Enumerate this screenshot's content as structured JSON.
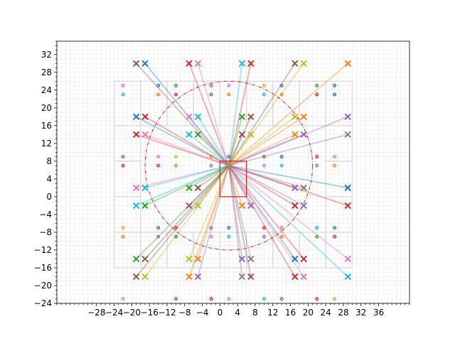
{
  "chart_data": {
    "type": "scatter",
    "title": "",
    "xlabel": "",
    "ylabel": "",
    "xlim": [
      -37,
      43
    ],
    "ylim": [
      -24,
      35
    ],
    "xticks": [
      -28,
      -24,
      -20,
      -16,
      -12,
      -8,
      -4,
      0,
      4,
      8,
      12,
      16,
      20,
      24,
      28,
      32,
      36
    ],
    "yticks": [
      -24,
      -20,
      -16,
      -12,
      -8,
      -4,
      0,
      4,
      8,
      12,
      16,
      20,
      24,
      28,
      32
    ],
    "xtick_labels": [
      "−28",
      "−24",
      "−20",
      "−16",
      "−12",
      "−8",
      "−4",
      "0",
      "4",
      "8",
      "12",
      "16",
      "20",
      "24",
      "28",
      "32",
      "36"
    ],
    "ytick_labels": [
      "−24",
      "−20",
      "−16",
      "−12",
      "−8",
      "−4",
      "0",
      "4",
      "8",
      "12",
      "16",
      "20",
      "24",
      "28",
      "32"
    ],
    "grid": "minor grid on",
    "rectangle": {
      "x": 0,
      "y": 0,
      "width": 6,
      "height": 8,
      "color": "#d62728"
    },
    "circle": {
      "center": [
        2,
        7
      ],
      "radius": 19,
      "color": "#d62728",
      "style": "dash-dot"
    },
    "hub": [
      2,
      7
    ],
    "cells": [
      {
        "x": [
          -24,
          -18
        ],
        "y": [
          16,
          26
        ]
      },
      {
        "x": [
          -18,
          -12
        ],
        "y": [
          16,
          26
        ]
      },
      {
        "x": [
          -12,
          -6
        ],
        "y": [
          16,
          26
        ]
      },
      {
        "x": [
          -6,
          0
        ],
        "y": [
          16,
          26
        ]
      },
      {
        "x": [
          0,
          6
        ],
        "y": [
          16,
          26
        ]
      },
      {
        "x": [
          6,
          12
        ],
        "y": [
          16,
          26
        ]
      },
      {
        "x": [
          12,
          18
        ],
        "y": [
          16,
          26
        ]
      },
      {
        "x": [
          18,
          24
        ],
        "y": [
          16,
          26
        ]
      },
      {
        "x": [
          24,
          30
        ],
        "y": [
          16,
          26
        ]
      },
      {
        "x": [
          -24,
          -18
        ],
        "y": [
          8,
          16
        ]
      },
      {
        "x": [
          24,
          30
        ],
        "y": [
          8,
          16
        ]
      },
      {
        "x": [
          -24,
          -18
        ],
        "y": [
          0,
          8
        ]
      },
      {
        "x": [
          24,
          30
        ],
        "y": [
          0,
          8
        ]
      },
      {
        "x": [
          -24,
          -18
        ],
        "y": [
          -8,
          0
        ]
      },
      {
        "x": [
          24,
          30
        ],
        "y": [
          -8,
          0
        ]
      },
      {
        "x": [
          -24,
          -18
        ],
        "y": [
          -16,
          -8
        ]
      },
      {
        "x": [
          -18,
          -12
        ],
        "y": [
          -16,
          -8
        ]
      },
      {
        "x": [
          -12,
          -6
        ],
        "y": [
          -16,
          -8
        ]
      },
      {
        "x": [
          -6,
          0
        ],
        "y": [
          -16,
          -8
        ]
      },
      {
        "x": [
          0,
          6
        ],
        "y": [
          -16,
          -8
        ]
      },
      {
        "x": [
          6,
          12
        ],
        "y": [
          -16,
          -8
        ]
      },
      {
        "x": [
          12,
          18
        ],
        "y": [
          -16,
          -8
        ]
      },
      {
        "x": [
          18,
          24
        ],
        "y": [
          -16,
          -8
        ]
      },
      {
        "x": [
          24,
          30
        ],
        "y": [
          -16,
          -8
        ]
      }
    ],
    "x_markers": [
      {
        "x": -19,
        "y": 30,
        "color": "#8c564b"
      },
      {
        "x": -17,
        "y": 30,
        "color": "#1f77b4"
      },
      {
        "x": -7,
        "y": 30,
        "color": "#d62728"
      },
      {
        "x": -5,
        "y": 30,
        "color": "#e377c2"
      },
      {
        "x": 5,
        "y": 30,
        "color": "#17becf"
      },
      {
        "x": 7,
        "y": 30,
        "color": "#d62728"
      },
      {
        "x": 17,
        "y": 30,
        "color": "#8c564b"
      },
      {
        "x": 19,
        "y": 30,
        "color": "#bcbd22"
      },
      {
        "x": 29,
        "y": 30,
        "color": "#ff7f0e"
      },
      {
        "x": -19,
        "y": 18,
        "color": "#1f77b4"
      },
      {
        "x": -17,
        "y": 18,
        "color": "#d62728"
      },
      {
        "x": -7,
        "y": 18,
        "color": "#e377c2"
      },
      {
        "x": -5,
        "y": 18,
        "color": "#17becf"
      },
      {
        "x": 5,
        "y": 18,
        "color": "#2ca02c"
      },
      {
        "x": 7,
        "y": 18,
        "color": "#8c564b"
      },
      {
        "x": 17,
        "y": 18,
        "color": "#bcbd22"
      },
      {
        "x": 19,
        "y": 18,
        "color": "#ff7f0e"
      },
      {
        "x": 29,
        "y": 18,
        "color": "#9467bd"
      },
      {
        "x": -19,
        "y": 14,
        "color": "#d62728"
      },
      {
        "x": -17,
        "y": 14,
        "color": "#e377c2"
      },
      {
        "x": -7,
        "y": 14,
        "color": "#17becf"
      },
      {
        "x": -5,
        "y": 14,
        "color": "#2ca02c"
      },
      {
        "x": 5,
        "y": 14,
        "color": "#8c564b"
      },
      {
        "x": 7,
        "y": 14,
        "color": "#bcbd22"
      },
      {
        "x": 17,
        "y": 14,
        "color": "#ff7f0e"
      },
      {
        "x": 19,
        "y": 14,
        "color": "#9467bd"
      },
      {
        "x": 29,
        "y": 14,
        "color": "#7f7f7f"
      },
      {
        "x": -19,
        "y": 2,
        "color": "#e377c2"
      },
      {
        "x": -17,
        "y": 2,
        "color": "#17becf"
      },
      {
        "x": -7,
        "y": 2,
        "color": "#2ca02c"
      },
      {
        "x": -5,
        "y": 2,
        "color": "#8c564b"
      },
      {
        "x": 17,
        "y": 2,
        "color": "#9467bd"
      },
      {
        "x": 19,
        "y": 2,
        "color": "#7f7f7f"
      },
      {
        "x": 29,
        "y": 2,
        "color": "#1f77b4"
      },
      {
        "x": -19,
        "y": -2,
        "color": "#17becf"
      },
      {
        "x": -17,
        "y": -2,
        "color": "#2ca02c"
      },
      {
        "x": -7,
        "y": -2,
        "color": "#8c564b"
      },
      {
        "x": -5,
        "y": -2,
        "color": "#bcbd22"
      },
      {
        "x": 5,
        "y": -2,
        "color": "#ff7f0e"
      },
      {
        "x": 7,
        "y": -2,
        "color": "#9467bd"
      },
      {
        "x": 17,
        "y": -2,
        "color": "#d62728"
      },
      {
        "x": 19,
        "y": -2,
        "color": "#9467bd"
      },
      {
        "x": 29,
        "y": -2,
        "color": "#d62728"
      },
      {
        "x": -19,
        "y": -14,
        "color": "#2ca02c"
      },
      {
        "x": -17,
        "y": -14,
        "color": "#8c564b"
      },
      {
        "x": -7,
        "y": -14,
        "color": "#bcbd22"
      },
      {
        "x": -5,
        "y": -14,
        "color": "#ff7f0e"
      },
      {
        "x": 5,
        "y": -14,
        "color": "#9467bd"
      },
      {
        "x": 7,
        "y": -14,
        "color": "#7f7f7f"
      },
      {
        "x": 17,
        "y": -14,
        "color": "#1f77b4"
      },
      {
        "x": 19,
        "y": -14,
        "color": "#d62728"
      },
      {
        "x": 29,
        "y": -14,
        "color": "#e377c2"
      },
      {
        "x": -19,
        "y": -18,
        "color": "#8c564b"
      },
      {
        "x": -17,
        "y": -18,
        "color": "#bcbd22"
      },
      {
        "x": -7,
        "y": -18,
        "color": "#ff7f0e"
      },
      {
        "x": -5,
        "y": -18,
        "color": "#9467bd"
      },
      {
        "x": 5,
        "y": -18,
        "color": "#7f7f7f"
      },
      {
        "x": 7,
        "y": -18,
        "color": "#8c564b"
      },
      {
        "x": 17,
        "y": -18,
        "color": "#d62728"
      },
      {
        "x": 19,
        "y": -18,
        "color": "#e377c2"
      },
      {
        "x": 29,
        "y": -18,
        "color": "#17becf"
      }
    ],
    "dot_markers": [
      {
        "x": -22,
        "y": 25,
        "color": "#e377c2"
      },
      {
        "x": -22,
        "y": 23,
        "color": "#17becf"
      },
      {
        "x": -14,
        "y": 25,
        "color": "#1f77b4"
      },
      {
        "x": -14,
        "y": 23,
        "color": "#ff7f0e"
      },
      {
        "x": -10,
        "y": 25,
        "color": "#2ca02c"
      },
      {
        "x": -10,
        "y": 23,
        "color": "#d62728"
      },
      {
        "x": -2,
        "y": 25,
        "color": "#9467bd"
      },
      {
        "x": -2,
        "y": 23,
        "color": "#8c564b"
      },
      {
        "x": 2,
        "y": 25,
        "color": "#e377c2"
      },
      {
        "x": 2,
        "y": 23,
        "color": "#ff7f0e"
      },
      {
        "x": 10,
        "y": 25,
        "color": "#bcbd22"
      },
      {
        "x": 10,
        "y": 23,
        "color": "#17becf"
      },
      {
        "x": 14,
        "y": 25,
        "color": "#1f77b4"
      },
      {
        "x": 14,
        "y": 23,
        "color": "#ff7f0e"
      },
      {
        "x": 22,
        "y": 25,
        "color": "#2ca02c"
      },
      {
        "x": 22,
        "y": 23,
        "color": "#d62728"
      },
      {
        "x": 26,
        "y": 25,
        "color": "#1f77b4"
      },
      {
        "x": 26,
        "y": 23,
        "color": "#1f77b4"
      },
      {
        "x": -22,
        "y": 9,
        "color": "#2ca02c"
      },
      {
        "x": -22,
        "y": 7,
        "color": "#d62728"
      },
      {
        "x": -14,
        "y": 9,
        "color": "#e377c2"
      },
      {
        "x": -14,
        "y": 7,
        "color": "#d62728"
      },
      {
        "x": -10,
        "y": 9,
        "color": "#bcbd22"
      },
      {
        "x": -10,
        "y": 7,
        "color": "#ff7f0e"
      },
      {
        "x": -2,
        "y": 9,
        "color": "#ff7f0e"
      },
      {
        "x": -2,
        "y": 7,
        "color": "#7f7f7f"
      },
      {
        "x": 2,
        "y": 9,
        "color": "#1f77b4"
      },
      {
        "x": 2,
        "y": 7,
        "color": "#ff7f0e"
      },
      {
        "x": 10,
        "y": 9,
        "color": "#8c564b"
      },
      {
        "x": 10,
        "y": 7,
        "color": "#e377c2"
      },
      {
        "x": 14,
        "y": 9,
        "color": "#1f77b4"
      },
      {
        "x": 14,
        "y": 7,
        "color": "#17becf"
      },
      {
        "x": 22,
        "y": 9,
        "color": "#d62728"
      },
      {
        "x": 22,
        "y": 7,
        "color": "#9467bd"
      },
      {
        "x": 26,
        "y": 9,
        "color": "#e377c2"
      },
      {
        "x": 26,
        "y": 7,
        "color": "#ff7f0e"
      },
      {
        "x": -22,
        "y": -7,
        "color": "#bcbd22"
      },
      {
        "x": -22,
        "y": -9,
        "color": "#ff7f0e"
      },
      {
        "x": -14,
        "y": -7,
        "color": "#8c564b"
      },
      {
        "x": -14,
        "y": -9,
        "color": "#9467bd"
      },
      {
        "x": -10,
        "y": -7,
        "color": "#d62728"
      },
      {
        "x": -10,
        "y": -9,
        "color": "#2ca02c"
      },
      {
        "x": -2,
        "y": -7,
        "color": "#9467bd"
      },
      {
        "x": -2,
        "y": -9,
        "color": "#e377c2"
      },
      {
        "x": 2,
        "y": -7,
        "color": "#1f77b4"
      },
      {
        "x": 2,
        "y": -9,
        "color": "#17becf"
      },
      {
        "x": 10,
        "y": -7,
        "color": "#d62728"
      },
      {
        "x": 10,
        "y": -9,
        "color": "#9467bd"
      },
      {
        "x": 14,
        "y": -7,
        "color": "#e377c2"
      },
      {
        "x": 14,
        "y": -9,
        "color": "#ff7f0e"
      },
      {
        "x": 22,
        "y": -7,
        "color": "#17becf"
      },
      {
        "x": 22,
        "y": -9,
        "color": "#2ca02c"
      },
      {
        "x": 26,
        "y": -7,
        "color": "#2ca02c"
      },
      {
        "x": 26,
        "y": -9,
        "color": "#d62728"
      },
      {
        "x": -22,
        "y": -23,
        "color": "#e377c2"
      },
      {
        "x": -10,
        "y": -23,
        "color": "#1f77b4"
      },
      {
        "x": -2,
        "y": -23,
        "color": "#d62728"
      },
      {
        "x": 2,
        "y": -23,
        "color": "#e377c2"
      },
      {
        "x": 10,
        "y": -23,
        "color": "#17becf"
      },
      {
        "x": 14,
        "y": -23,
        "color": "#2ca02c"
      },
      {
        "x": 22,
        "y": -23,
        "color": "#d62728"
      },
      {
        "x": 26,
        "y": -23,
        "color": "#bcbd22"
      }
    ]
  }
}
